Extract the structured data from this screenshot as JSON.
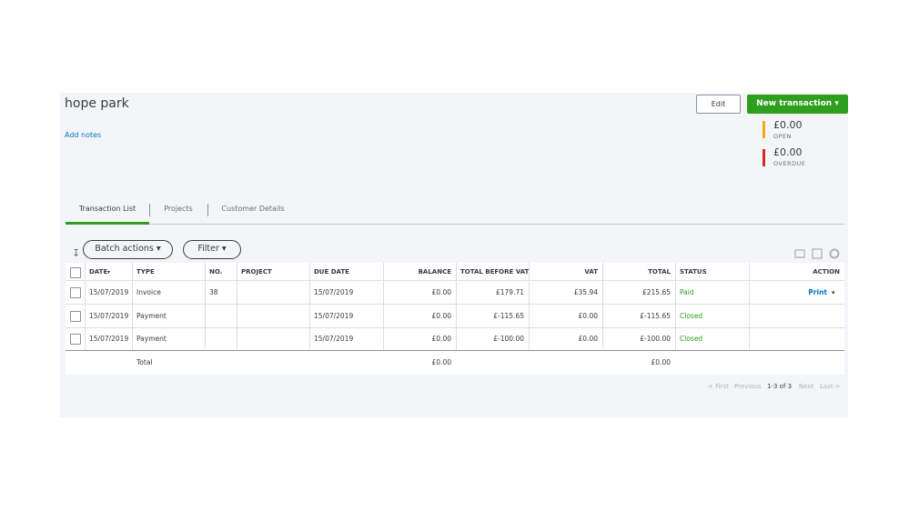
{
  "header": {
    "title": "hope park",
    "add_notes": "Add notes",
    "edit": "Edit",
    "new_transaction": "New transaction"
  },
  "summary": [
    {
      "amount": "£0.00",
      "label": "OPEN"
    },
    {
      "amount": "£0.00",
      "label": "OVERDUE"
    }
  ],
  "tabs": [
    "Transaction List",
    "Projects",
    "Customer Details"
  ],
  "toolbar": {
    "batch_actions": "Batch actions",
    "filter": "Filter"
  },
  "table": {
    "columns": [
      "DATE",
      "TYPE",
      "NO.",
      "PROJECT",
      "DUE DATE",
      "BALANCE",
      "TOTAL BEFORE VAT",
      "VAT",
      "TOTAL",
      "STATUS",
      "ACTION"
    ],
    "rows": [
      [
        "15/07/2019",
        "Invoice",
        "38",
        null,
        "15/07/2019",
        "£0.00",
        "£179.71",
        "£35.94",
        "£215.65",
        "Paid",
        "Print"
      ],
      [
        "15/07/2019",
        "Payment",
        null,
        null,
        "15/07/2019",
        "£0.00",
        "£-115.65",
        "£0.00",
        "£-115.65",
        "Closed",
        null
      ],
      [
        "15/07/2019",
        "Payment",
        null,
        null,
        "15/07/2019",
        "£0.00",
        "£-100.00",
        "£0.00",
        "£-100.00",
        "Closed",
        null
      ]
    ],
    "totals": {
      "label": "Total",
      "balance": "£0.00",
      "total": "£0.00"
    }
  },
  "pagination": [
    "< First",
    "Previous",
    "1-3 of 3",
    "Next",
    "Last >"
  ]
}
